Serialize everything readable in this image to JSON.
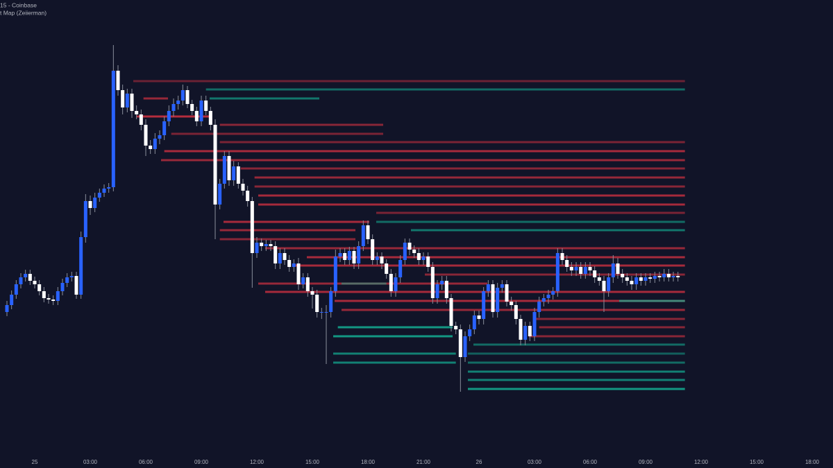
{
  "chart_data": {
    "type": "candlestick",
    "title": "15 - Coinbase",
    "subtitle": "t Map (Zeiierman)",
    "up_color": "#2962ff",
    "down_color": "#ffffff",
    "xlim": [
      -1.5,
      178.5
    ],
    "ylim": [
      0,
      650
    ],
    "xticks": [
      {
        "value": 6,
        "label": "25"
      },
      {
        "value": 18,
        "label": "03:00"
      },
      {
        "value": 30,
        "label": "06:00"
      },
      {
        "value": 42,
        "label": "09:00"
      },
      {
        "value": 54,
        "label": "12:00"
      },
      {
        "value": 66,
        "label": "15:00"
      },
      {
        "value": 78,
        "label": "18:00"
      },
      {
        "value": 90,
        "label": "21:00"
      },
      {
        "value": 102,
        "label": "26"
      },
      {
        "value": 114,
        "label": "03:00"
      },
      {
        "value": 126,
        "label": "06:00"
      },
      {
        "value": 138,
        "label": "09:00"
      },
      {
        "value": 150,
        "label": "12:00"
      },
      {
        "value": 162,
        "label": "15:00"
      },
      {
        "value": 174,
        "label": "18:00"
      }
    ],
    "open": [
      200,
      210,
      225,
      240,
      250,
      255,
      245,
      240,
      230,
      220,
      218,
      216,
      230,
      242,
      250,
      252,
      225,
      308,
      360,
      350,
      365,
      372,
      378,
      380,
      548,
      520,
      495,
      515,
      490,
      485,
      470,
      440,
      435,
      450,
      455,
      475,
      490,
      500,
      505,
      520,
      500,
      490,
      475,
      505,
      490,
      470,
      355,
      385,
      425,
      390,
      410,
      385,
      375,
      360,
      285,
      300,
      295,
      298,
      295,
      270,
      285,
      275,
      265,
      270,
      240,
      250,
      230,
      225,
      200,
      200,
      200,
      230,
      280,
      285,
      275,
      288,
      270,
      295,
      325,
      305,
      275,
      280,
      270,
      255,
      230,
      250,
      275,
      300,
      290,
      285,
      275,
      280,
      265,
      220,
      240,
      245,
      220,
      180,
      175,
      135,
      165,
      175,
      195,
      190,
      230,
      240,
      200,
      235,
      240,
      215,
      210,
      190,
      160,
      180,
      165,
      200,
      215,
      220,
      225,
      230,
      285,
      275,
      265,
      260,
      265,
      255,
      265,
      260,
      250,
      245,
      230,
      250,
      270,
      255,
      250,
      245,
      240,
      250,
      245,
      250,
      248,
      252,
      250,
      255,
      250,
      252
    ],
    "high": [
      216,
      231,
      246,
      256,
      261,
      261,
      251,
      246,
      236,
      226,
      224,
      236,
      248,
      256,
      258,
      258,
      316,
      370,
      368,
      372,
      378,
      384,
      386,
      585,
      556,
      528,
      522,
      522,
      498,
      492,
      478,
      448,
      458,
      462,
      482,
      498,
      508,
      512,
      528,
      526,
      506,
      496,
      512,
      512,
      496,
      478,
      392,
      432,
      432,
      418,
      416,
      392,
      382,
      366,
      308,
      306,
      304,
      304,
      302,
      292,
      292,
      282,
      276,
      278,
      256,
      256,
      236,
      232,
      206,
      210,
      236,
      290,
      292,
      292,
      294,
      294,
      302,
      332,
      332,
      312,
      286,
      286,
      276,
      262,
      256,
      282,
      306,
      306,
      296,
      292,
      286,
      286,
      272,
      246,
      252,
      252,
      226,
      186,
      182,
      172,
      182,
      202,
      202,
      236,
      246,
      246,
      242,
      246,
      246,
      222,
      216,
      196,
      186,
      186,
      206,
      222,
      226,
      232,
      236,
      292,
      292,
      282,
      272,
      272,
      272,
      272,
      272,
      266,
      256,
      252,
      256,
      282,
      278,
      262,
      256,
      252,
      256,
      256,
      256,
      256,
      258,
      258,
      262,
      262,
      258,
      258
    ],
    "low": [
      194,
      204,
      219,
      234,
      244,
      239,
      234,
      224,
      214,
      212,
      210,
      210,
      224,
      236,
      244,
      219,
      219,
      300,
      340,
      344,
      359,
      366,
      372,
      374,
      512,
      485,
      488,
      480,
      478,
      462,
      425,
      428,
      428,
      442,
      448,
      468,
      482,
      492,
      498,
      494,
      484,
      468,
      468,
      484,
      462,
      305,
      348,
      378,
      382,
      382,
      378,
      368,
      352,
      235,
      278,
      288,
      288,
      288,
      262,
      262,
      268,
      258,
      258,
      232,
      234,
      222,
      205,
      192,
      190,
      125,
      192,
      222,
      272,
      268,
      268,
      262,
      262,
      288,
      298,
      268,
      268,
      262,
      248,
      222,
      222,
      242,
      268,
      282,
      278,
      268,
      268,
      258,
      212,
      212,
      232,
      212,
      172,
      168,
      85,
      128,
      158,
      168,
      182,
      182,
      222,
      192,
      192,
      228,
      208,
      202,
      182,
      152,
      152,
      158,
      158,
      192,
      208,
      212,
      218,
      222,
      268,
      258,
      252,
      252,
      248,
      248,
      252,
      242,
      238,
      200,
      222,
      242,
      248,
      242,
      238,
      232,
      232,
      238,
      238,
      242,
      242,
      244,
      244,
      244,
      244,
      244
    ],
    "close": [
      210,
      225,
      240,
      250,
      255,
      245,
      240,
      230,
      220,
      218,
      216,
      230,
      242,
      250,
      252,
      225,
      308,
      360,
      350,
      365,
      372,
      378,
      380,
      548,
      520,
      495,
      515,
      490,
      485,
      470,
      440,
      435,
      450,
      455,
      475,
      490,
      500,
      505,
      520,
      500,
      490,
      475,
      505,
      490,
      470,
      355,
      385,
      425,
      390,
      410,
      385,
      375,
      360,
      285,
      300,
      295,
      298,
      295,
      270,
      285,
      275,
      265,
      270,
      240,
      250,
      230,
      225,
      200,
      200,
      200,
      230,
      280,
      285,
      275,
      288,
      270,
      295,
      325,
      305,
      275,
      280,
      270,
      255,
      230,
      250,
      275,
      300,
      290,
      285,
      275,
      280,
      265,
      220,
      240,
      245,
      220,
      180,
      175,
      135,
      165,
      175,
      195,
      190,
      230,
      240,
      200,
      235,
      240,
      215,
      210,
      190,
      160,
      180,
      165,
      200,
      215,
      220,
      225,
      230,
      285,
      275,
      265,
      260,
      265,
      255,
      265,
      260,
      250,
      245,
      230,
      250,
      270,
      255,
      250,
      245,
      240,
      250,
      245,
      250,
      248,
      252,
      250,
      255,
      250,
      252,
      250
    ],
    "heat_levels": {
      "values": [
        533,
        521,
        508,
        508,
        482,
        470,
        457,
        445,
        432,
        419,
        407,
        394,
        381,
        368,
        355,
        343,
        330,
        330,
        318,
        318,
        305,
        292,
        279,
        267,
        254,
        241,
        241,
        229,
        216,
        216,
        203,
        190,
        178,
        178,
        165,
        165,
        153,
        140,
        140,
        127,
        127,
        114,
        102,
        89
      ],
      "from": [
        27.3,
        43,
        29.5,
        43.8,
        28,
        46,
        35.5,
        46,
        34,
        33.3,
        50.5,
        53.5,
        53.5,
        54.3,
        54.3,
        79.8,
        46.8,
        79.8,
        46,
        87.3,
        46,
        55.8,
        64.8,
        61.8,
        90.3,
        54.3,
        72.3,
        55.8,
        70.8,
        132.3,
        72.3,
        114.3,
        71.5,
        115,
        70.5,
        112.8,
        100.8,
        70.5,
        99.6,
        70.5,
        99.6,
        99.6,
        99.6,
        99.6
      ],
      "to": [
        146.5,
        146.5,
        34.8,
        67.5,
        43.8,
        81.3,
        81.3,
        146.5,
        146.5,
        146.5,
        146.5,
        146.5,
        146.5,
        146.5,
        146.5,
        146.5,
        78.3,
        146.5,
        75.3,
        146.5,
        75.3,
        146.5,
        146.5,
        146.5,
        146.5,
        103.8,
        82,
        146.5,
        146.5,
        146.5,
        146.5,
        146.5,
        96.3,
        146.5,
        96.3,
        146.5,
        146.5,
        97,
        146.5,
        97,
        146.5,
        146.5,
        146.5,
        146.5
      ],
      "colors": [
        "#f2364566",
        "#14b89a88",
        "#f2364599",
        "#14b89a99",
        "#f23645bb",
        "#f2364588",
        "#f2364577",
        "#f2364577",
        "#f23645aa",
        "#f2364599",
        "#f2364588",
        "#f2364599",
        "#f2364588",
        "#f23645aa",
        "#f23645aa",
        "#f2364577",
        "#f23645aa",
        "#14b89a88",
        "#f2364599",
        "#14b89a99",
        "#f2364588",
        "#f2364599",
        "#f23645aa",
        "#f23645aa",
        "#f2364588",
        "#f2364599",
        "#14b89a77",
        "#f23645aa",
        "#f23645aa",
        "#14b89aaa",
        "#f2364599",
        "#f2364588",
        "#14b89acc",
        "#f2364588",
        "#14b89acc",
        "#f2364588",
        "#14b89a88",
        "#14b89aaa",
        "#14b89a77",
        "#14b89aaa",
        "#14b89a88",
        "#14b89aaa",
        "#14b89aaa",
        "#14b89acc"
      ]
    }
  }
}
